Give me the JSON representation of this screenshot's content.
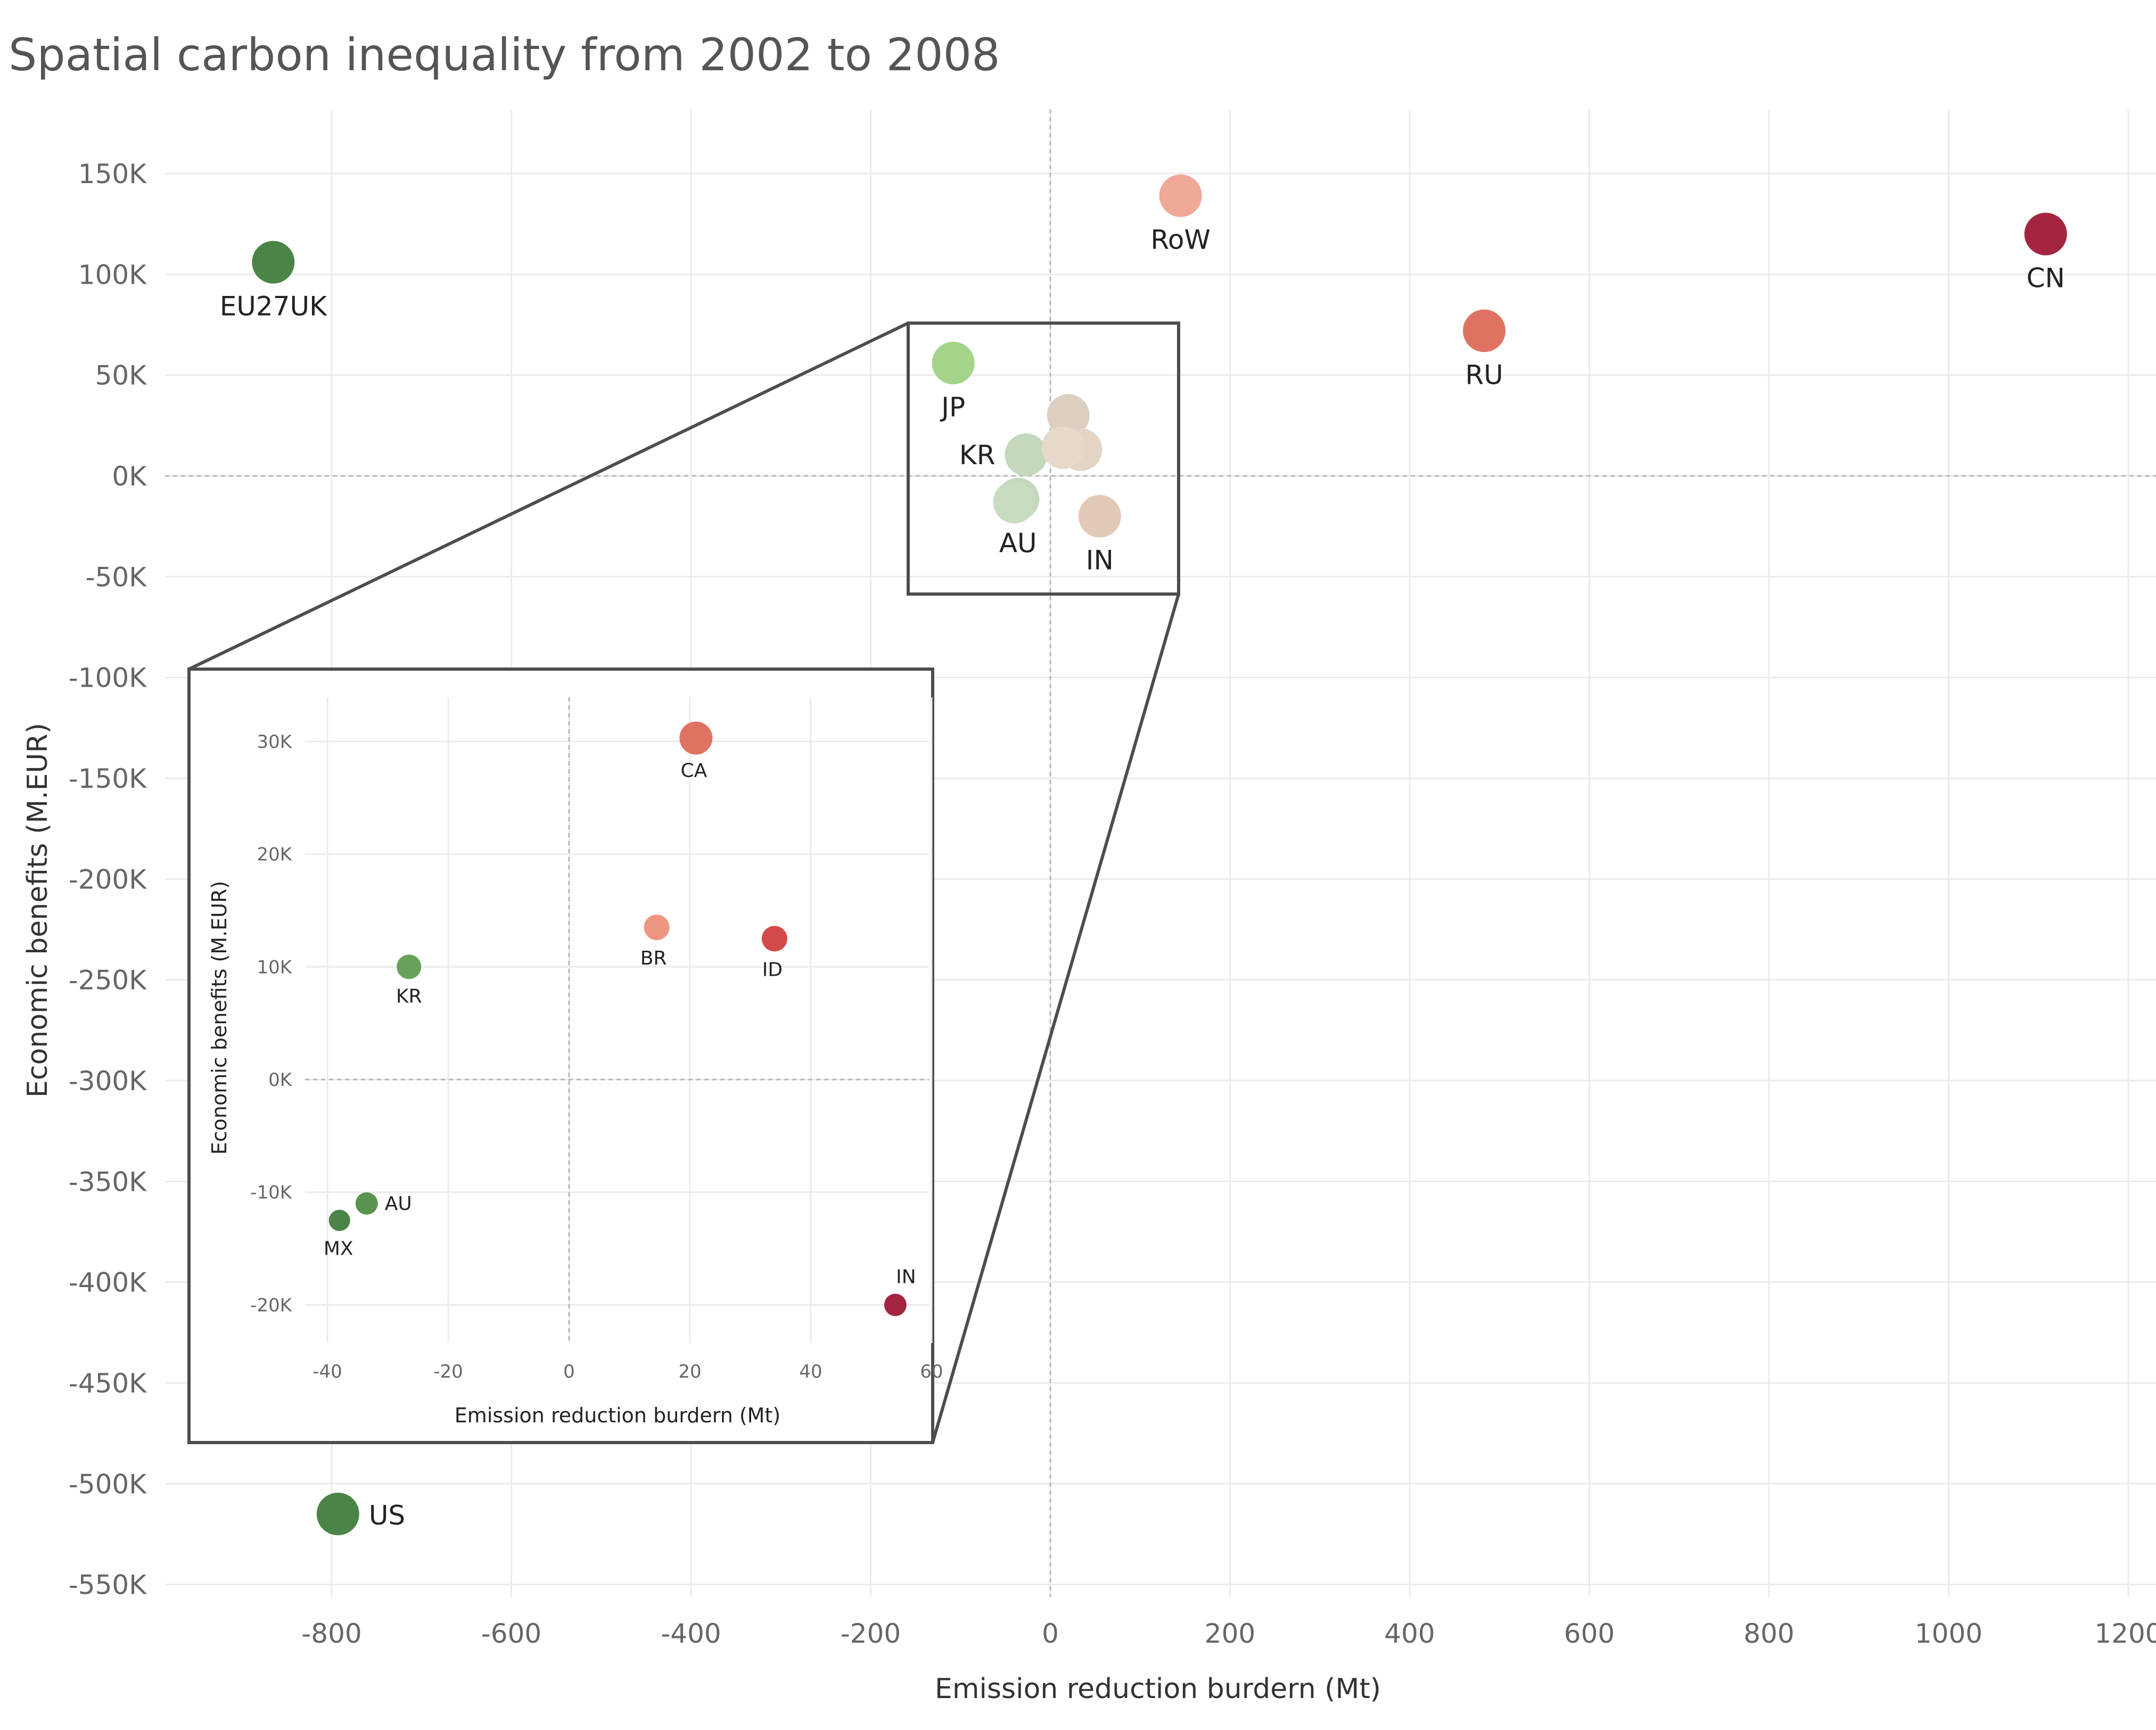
{
  "chart_data": [
    {
      "type": "scatter",
      "title": "Spatial carbon inequality from 2002 to 2008",
      "xlabel": "Emission reduction burdern (Mt)",
      "ylabel": "Economic benefits (M.EUR)",
      "xlim": [
        -960,
        1230
      ],
      "ylim": [
        -560000,
        180000
      ],
      "xticks": [
        -800,
        -600,
        -400,
        -200,
        0,
        200,
        400,
        600,
        800,
        1000,
        1200
      ],
      "xtick_labels": [
        "-800",
        "-600",
        "-400",
        "-200",
        "0",
        "200",
        "400",
        "600",
        "800",
        "1000",
        "1200"
      ],
      "yticks": [
        150000,
        100000,
        50000,
        0,
        -50000,
        -100000,
        -150000,
        -200000,
        -250000,
        -300000,
        -350000,
        -400000,
        -450000,
        -500000,
        -550000
      ],
      "ytick_labels": [
        "150K",
        "100K",
        "50K",
        "0K",
        "-50K",
        "-100K",
        "-150K",
        "-200K",
        "-250K",
        "-300K",
        "-350K",
        "-400K",
        "-450K",
        "-500K",
        "-550K"
      ],
      "points": [
        {
          "label": "EU27UK",
          "x": -865,
          "y": 106000,
          "color": "#4a8446"
        },
        {
          "label": "RoW",
          "x": 145,
          "y": 139000,
          "color": "#f0a898"
        },
        {
          "label": "CN",
          "x": 1108,
          "y": 120000,
          "color": "#a32540"
        },
        {
          "label": "RU",
          "x": 483,
          "y": 72000,
          "color": "#e07262"
        },
        {
          "label": "JP",
          "x": -108,
          "y": 56000,
          "color": "#a3d489"
        },
        {
          "label": "KR",
          "x": -27,
          "y": 10500,
          "color": "#c3d8bc"
        },
        {
          "label": "AU",
          "x": -36,
          "y": -11500,
          "color": "#c3d8bc"
        },
        {
          "label": "IN",
          "x": 55,
          "y": -20000,
          "color": "#e2c8b6"
        },
        {
          "label": "",
          "x": 20,
          "y": 30000,
          "color": "#dccfc2"
        },
        {
          "label": "",
          "x": 34,
          "y": 13000,
          "color": "#e3d4c6"
        },
        {
          "label": "",
          "x": 14,
          "y": 14000,
          "color": "#e6d9cc"
        },
        {
          "label": "",
          "x": -40,
          "y": -13000,
          "color": "#c7dbc0"
        },
        {
          "label": "US",
          "x": -793,
          "y": -515000,
          "color": "#4a8446"
        }
      ]
    },
    {
      "type": "scatter",
      "title": "",
      "xlabel": "Emission reduction burdern (Mt)",
      "ylabel": "Economic benefits (M.EUR)",
      "xlim": [
        -44,
        60
      ],
      "ylim": [
        -23500,
        34000
      ],
      "xticks": [
        -40,
        -20,
        0,
        20,
        40,
        60
      ],
      "xtick_labels": [
        "-40",
        "-20",
        "0",
        "20",
        "40",
        "60"
      ],
      "yticks": [
        30000,
        20000,
        10000,
        0,
        -10000,
        -20000
      ],
      "ytick_labels": [
        "30K",
        "20K",
        "10K",
        "0K",
        "-10K",
        "-20K"
      ],
      "points": [
        {
          "label": "CA",
          "x": 21,
          "y": 30300,
          "color": "#e07262"
        },
        {
          "label": "BR",
          "x": 14.5,
          "y": 13500,
          "color": "#ef9683"
        },
        {
          "label": "ID",
          "x": 34,
          "y": 12500,
          "color": "#d44a48"
        },
        {
          "label": "KR",
          "x": -26.5,
          "y": 10000,
          "color": "#68a15a"
        },
        {
          "label": "AU",
          "x": -33.5,
          "y": -11000,
          "color": "#5a9250"
        },
        {
          "label": "MX",
          "x": -38,
          "y": -12500,
          "color": "#4a8446"
        },
        {
          "label": "IN",
          "x": 54,
          "y": -20000,
          "color": "#a32540"
        }
      ]
    }
  ]
}
